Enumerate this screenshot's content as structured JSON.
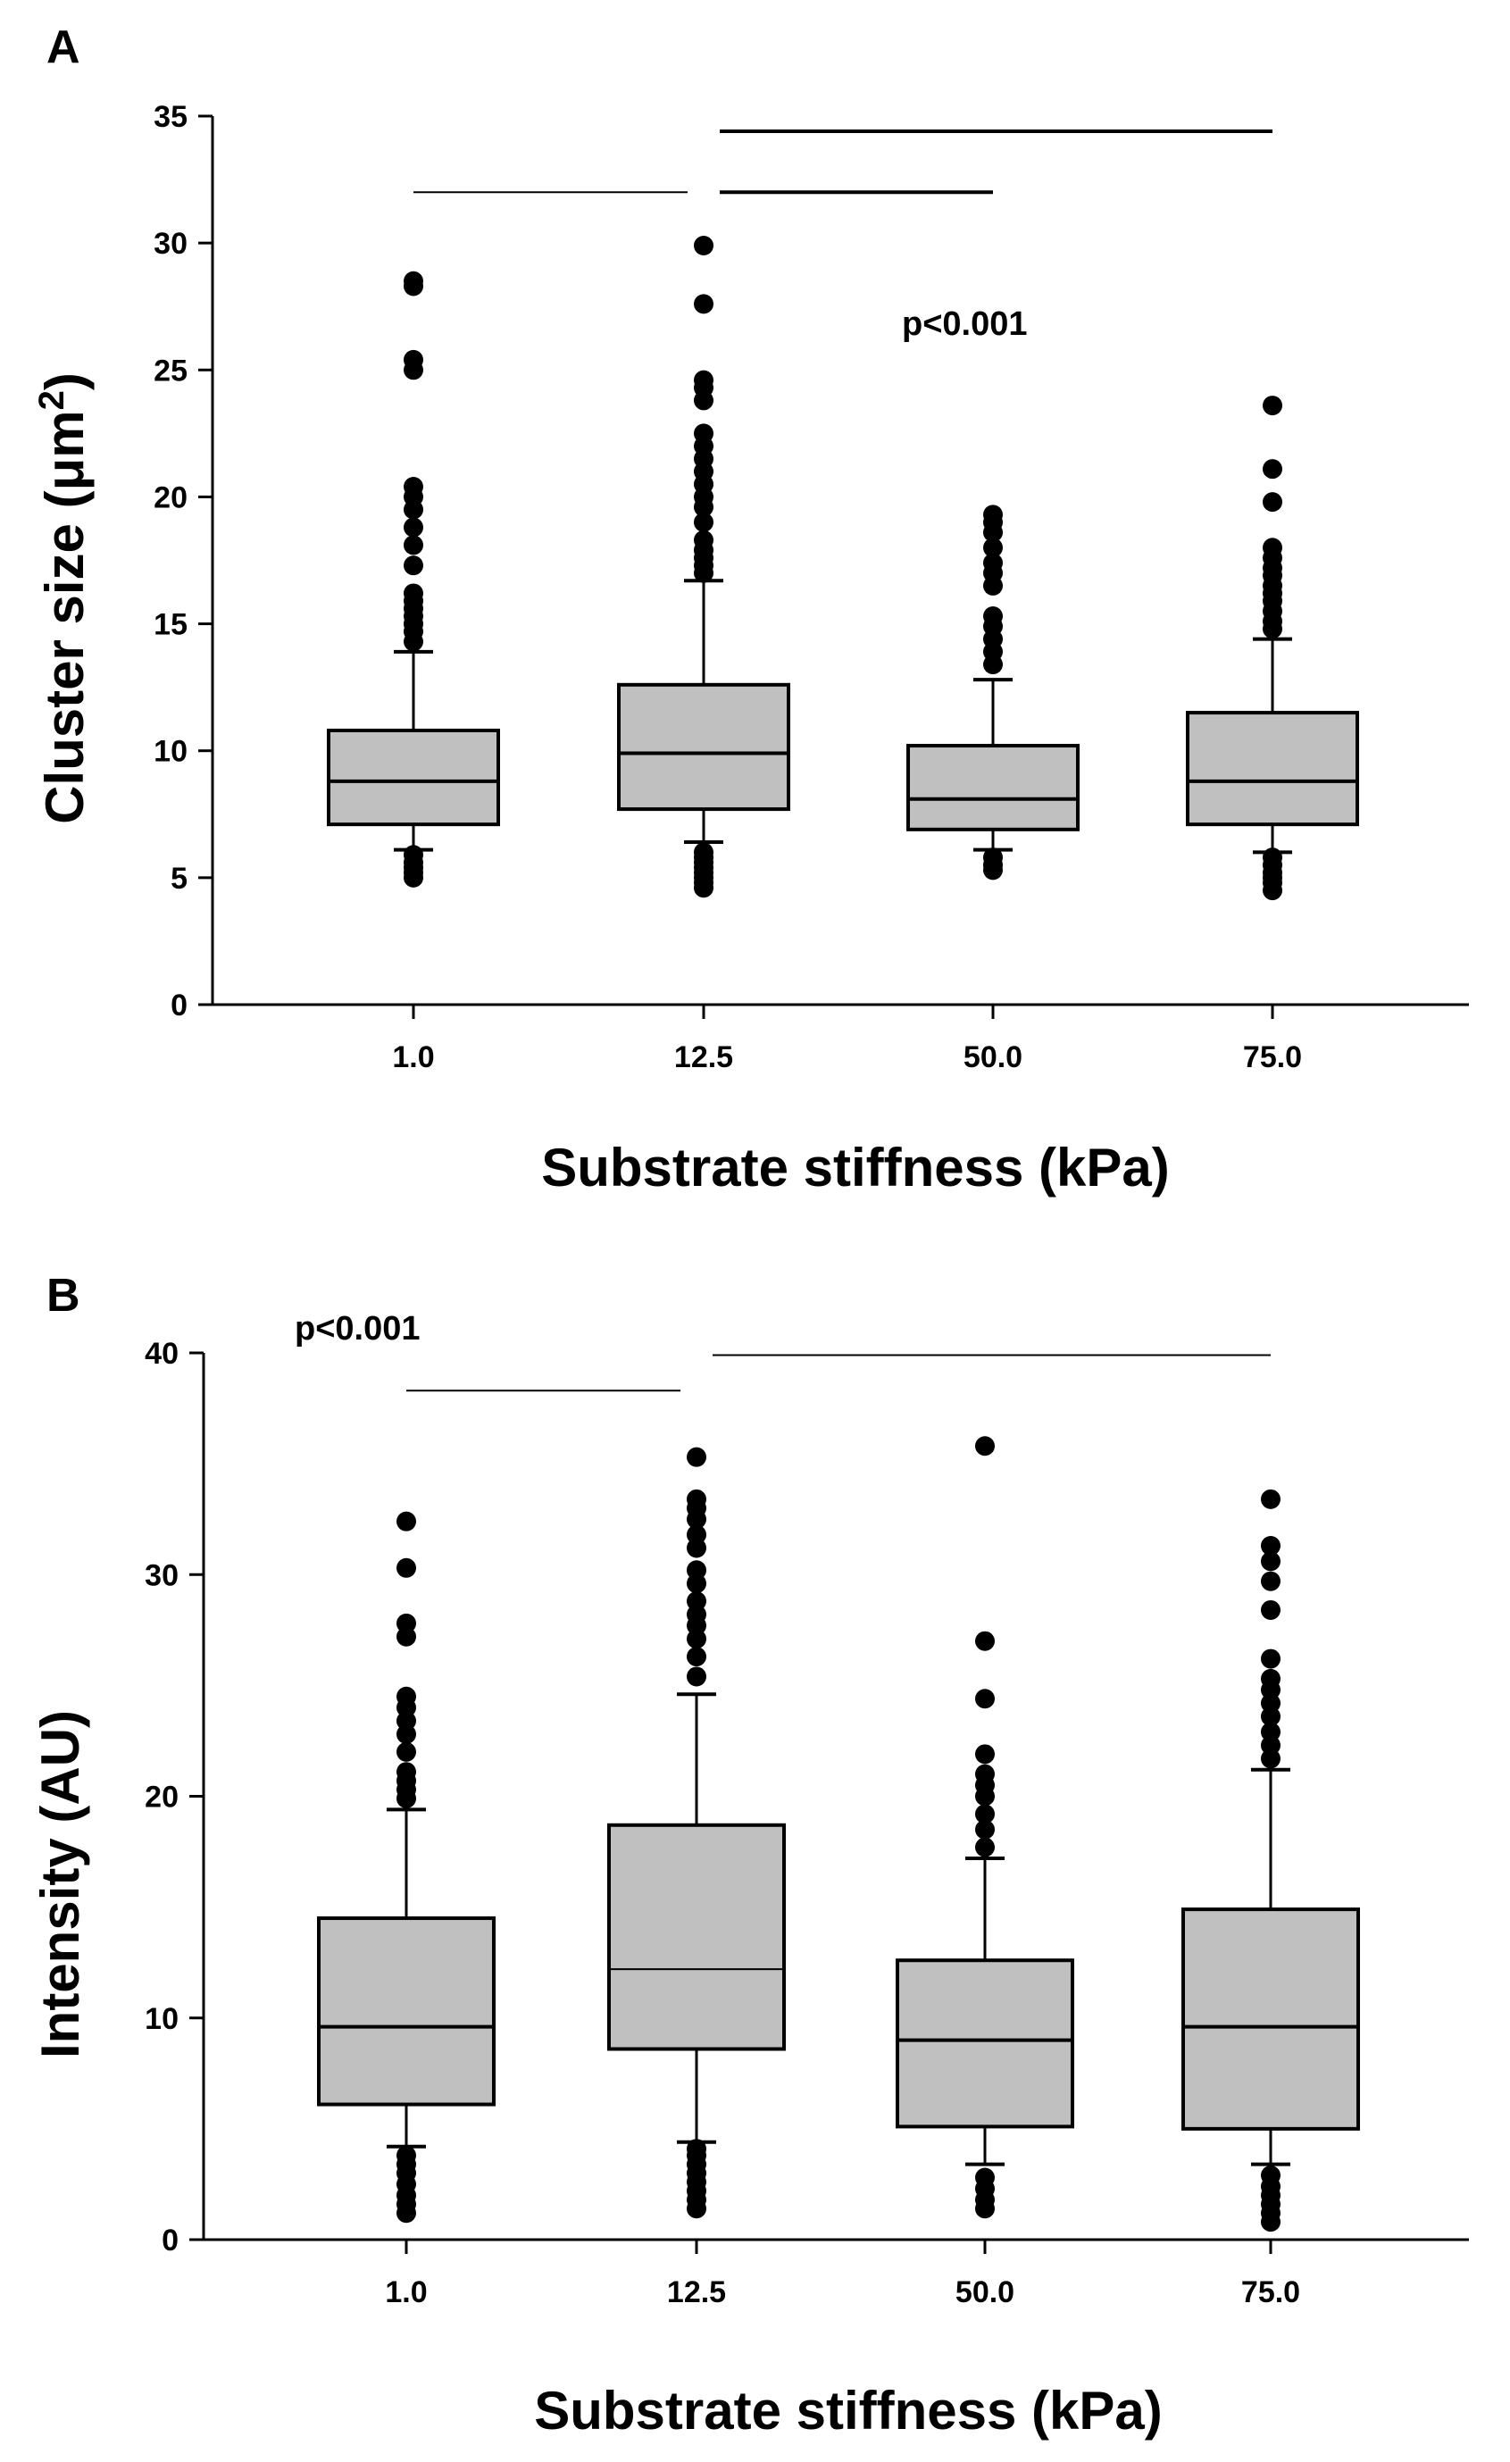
{
  "chart_data": [
    {
      "type": "box",
      "panel_label": "A",
      "xlabel": "Substrate stiffness (kPa)",
      "ylabel": "Cluster size (μm",
      "ylabel_sup": "2",
      "ylabel_close": ")",
      "ylim": [
        0,
        35
      ],
      "yticks": [
        0,
        5,
        10,
        15,
        20,
        25,
        30,
        35
      ],
      "annotation": "p<0.001",
      "categories": [
        "1.0",
        "12.5",
        "50.0",
        "75.0"
      ],
      "boxes": [
        {
          "category": "1.0",
          "whisker_low": 6.1,
          "q1": 7.1,
          "median": 8.8,
          "q3": 10.8,
          "whisker_high": 13.9,
          "outliers": [
            5.0,
            5.2,
            5.4,
            5.6,
            5.9,
            14.3,
            14.7,
            15.0,
            15.3,
            15.6,
            15.9,
            16.2,
            17.3,
            18.1,
            18.8,
            19.5,
            20.0,
            20.4,
            25.0,
            25.4,
            28.3,
            28.5
          ]
        },
        {
          "category": "12.5",
          "whisker_low": 6.4,
          "q1": 7.7,
          "median": 9.9,
          "q3": 12.6,
          "whisker_high": 16.7,
          "outliers": [
            4.6,
            4.8,
            5.0,
            5.2,
            5.4,
            5.6,
            5.8,
            6.0,
            17.0,
            17.3,
            17.6,
            17.9,
            18.3,
            19.0,
            19.6,
            20.0,
            20.5,
            21.0,
            21.5,
            22.0,
            22.5,
            23.8,
            24.3,
            24.6,
            27.6,
            29.9
          ]
        },
        {
          "category": "50.0",
          "whisker_low": 6.1,
          "q1": 6.9,
          "median": 8.1,
          "q3": 10.2,
          "whisker_high": 12.8,
          "outliers": [
            5.3,
            5.5,
            5.8,
            13.4,
            13.9,
            14.4,
            14.9,
            15.3,
            16.5,
            17.0,
            17.4,
            18.0,
            18.6,
            19.0,
            19.3
          ]
        },
        {
          "category": "75.0",
          "whisker_low": 6.0,
          "q1": 7.1,
          "median": 8.8,
          "q3": 11.5,
          "whisker_high": 14.4,
          "outliers": [
            4.5,
            4.8,
            5.0,
            5.2,
            5.5,
            5.8,
            14.8,
            15.1,
            15.5,
            15.9,
            16.2,
            16.5,
            16.9,
            17.2,
            17.6,
            18.0,
            19.8,
            21.1,
            23.6
          ]
        }
      ],
      "significance_bars": [
        {
          "from": "1.0",
          "to": "12.5",
          "y": 32.0
        },
        {
          "from": "12.5",
          "to": "50.0",
          "y": 32.0
        },
        {
          "from": "12.5",
          "to": "75.0",
          "y": 34.4
        }
      ]
    },
    {
      "type": "box",
      "panel_label": "B",
      "xlabel": "Substrate stiffness (kPa)",
      "ylabel": "Intensity (AU)",
      "ylim": [
        0,
        40
      ],
      "yticks": [
        0,
        10,
        20,
        30,
        40
      ],
      "annotation": "p<0.001",
      "categories": [
        "1.0",
        "12.5",
        "50.0",
        "75.0"
      ],
      "boxes": [
        {
          "category": "1.0",
          "whisker_low": 4.2,
          "q1": 6.1,
          "median": 9.6,
          "q3": 14.5,
          "whisker_high": 19.4,
          "outliers": [
            1.2,
            1.6,
            2.0,
            2.5,
            3.0,
            3.4,
            3.8,
            19.9,
            20.3,
            20.7,
            21.1,
            22.0,
            22.8,
            23.4,
            24.0,
            24.5,
            27.2,
            27.8,
            30.3,
            32.4
          ]
        },
        {
          "category": "12.5",
          "whisker_low": 4.4,
          "q1": 8.6,
          "median": 12.2,
          "q3": 18.7,
          "whisker_high": 24.6,
          "outliers": [
            1.4,
            1.8,
            2.2,
            2.6,
            3.0,
            3.4,
            3.8,
            4.1,
            25.4,
            26.3,
            27.1,
            27.7,
            28.2,
            28.8,
            29.6,
            30.2,
            31.2,
            31.8,
            32.5,
            33.0,
            33.4,
            35.3
          ]
        },
        {
          "category": "50.0",
          "whisker_low": 3.4,
          "q1": 5.1,
          "median": 9.0,
          "q3": 12.6,
          "whisker_high": 17.2,
          "outliers": [
            1.4,
            1.8,
            2.3,
            2.8,
            17.7,
            18.5,
            19.2,
            20.0,
            20.5,
            21.0,
            21.9,
            24.4,
            27.0,
            35.8
          ]
        },
        {
          "category": "75.0",
          "whisker_low": 3.4,
          "q1": 5.0,
          "median": 9.6,
          "q3": 14.9,
          "whisker_high": 21.2,
          "outliers": [
            0.8,
            1.2,
            1.6,
            2.0,
            2.4,
            2.9,
            21.7,
            22.3,
            22.9,
            23.6,
            24.2,
            24.8,
            25.3,
            26.2,
            28.4,
            29.7,
            30.6,
            31.3,
            33.4
          ]
        }
      ],
      "significance_bars": [
        {
          "from": "1.0",
          "to": "12.5",
          "y": 38.3
        },
        {
          "from": "12.5",
          "to": "75.0",
          "y": 39.9
        }
      ]
    }
  ]
}
